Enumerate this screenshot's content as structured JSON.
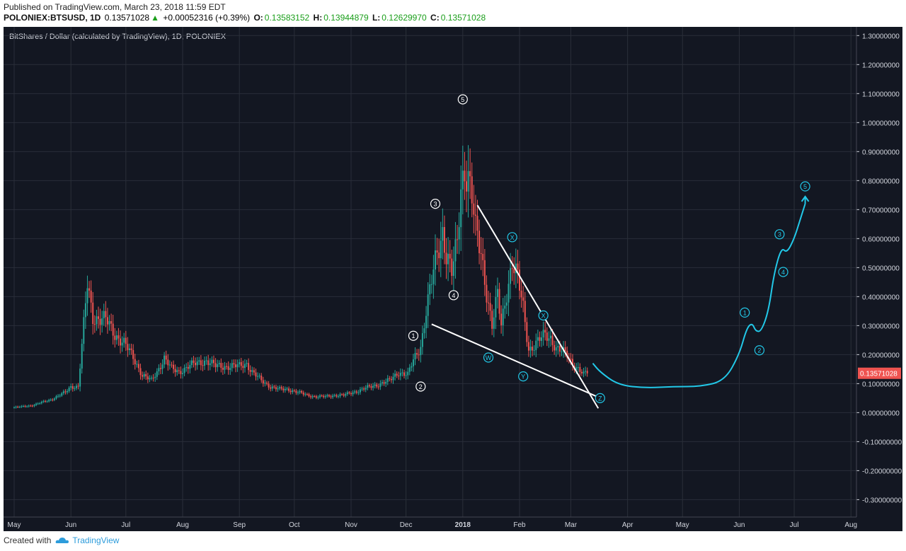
{
  "header": {
    "published": "Published on TradingView.com, March 23, 2018 11:59 EDT",
    "symbol": "POLONIEX:BTSUSD, 1D",
    "last": "0.13571028",
    "change": "+0.00052316 (+0.39%)",
    "open_label": "O:",
    "open": "0.13583152",
    "high_label": "H:",
    "high": "0.13944879",
    "low_label": "L:",
    "low": "0.12629970",
    "close_label": "C:",
    "close": "0.13571028"
  },
  "footer": {
    "created_with": "Created with",
    "brand": "TradingView"
  },
  "colors": {
    "background": "#131722",
    "grid": "#2a2e39",
    "up": "#26a69a",
    "down": "#ef5350",
    "trendline": "#ffffff",
    "projection": "#22c8e8",
    "price_tag": "#ef5350",
    "axis_text": "#d1d4dc"
  },
  "chart_data": {
    "type": "candlestick",
    "title": "BitShares / Dollar (calculated by TradingView), 1D, POLONIEX",
    "ylim": [
      -0.36,
      1.33
    ],
    "y_ticks": [
      "1.30000000",
      "1.20000000",
      "1.10000000",
      "1.00000000",
      "0.90000000",
      "0.80000000",
      "0.70000000",
      "0.60000000",
      "0.50000000",
      "0.40000000",
      "0.30000000",
      "0.20000000",
      "0.10000000",
      "0.00000000",
      "-0.10000000",
      "-0.20000000",
      "-0.30000000"
    ],
    "y_tick_values": [
      1.3,
      1.2,
      1.1,
      1.0,
      0.9,
      0.8,
      0.7,
      0.6,
      0.5,
      0.4,
      0.3,
      0.2,
      0.1,
      0.0,
      -0.1,
      -0.2,
      -0.3
    ],
    "x_ticks": [
      "May",
      "Jun",
      "Jul",
      "Aug",
      "Sep",
      "Oct",
      "Nov",
      "Dec",
      "2018",
      "Feb",
      "Mar",
      "Apr",
      "May",
      "Jun",
      "Jul",
      "Aug"
    ],
    "x_tick_days": [
      0,
      31,
      61,
      92,
      123,
      153,
      184,
      214,
      245,
      276,
      304,
      335,
      365,
      396,
      426,
      457
    ],
    "x_start": "2017-05-01",
    "last_price_label": "0.13571028",
    "last_price": 0.13571028,
    "price_anchors": [
      [
        0,
        0.018
      ],
      [
        10,
        0.025
      ],
      [
        20,
        0.045
      ],
      [
        28,
        0.07
      ],
      [
        31,
        0.09
      ],
      [
        35,
        0.09
      ],
      [
        38,
        0.3
      ],
      [
        40,
        0.44
      ],
      [
        43,
        0.33
      ],
      [
        50,
        0.32
      ],
      [
        55,
        0.27
      ],
      [
        60,
        0.24
      ],
      [
        65,
        0.19
      ],
      [
        70,
        0.13
      ],
      [
        75,
        0.11
      ],
      [
        78,
        0.14
      ],
      [
        82,
        0.19
      ],
      [
        86,
        0.15
      ],
      [
        90,
        0.14
      ],
      [
        95,
        0.16
      ],
      [
        100,
        0.17
      ],
      [
        105,
        0.18
      ],
      [
        110,
        0.16
      ],
      [
        115,
        0.16
      ],
      [
        120,
        0.16
      ],
      [
        123,
        0.16
      ],
      [
        127,
        0.17
      ],
      [
        130,
        0.14
      ],
      [
        135,
        0.11
      ],
      [
        140,
        0.09
      ],
      [
        145,
        0.08
      ],
      [
        150,
        0.08
      ],
      [
        155,
        0.07
      ],
      [
        160,
        0.06
      ],
      [
        165,
        0.055
      ],
      [
        170,
        0.055
      ],
      [
        175,
        0.06
      ],
      [
        180,
        0.06
      ],
      [
        185,
        0.07
      ],
      [
        190,
        0.08
      ],
      [
        195,
        0.09
      ],
      [
        200,
        0.1
      ],
      [
        205,
        0.11
      ],
      [
        210,
        0.14
      ],
      [
        215,
        0.13
      ],
      [
        218,
        0.18
      ],
      [
        222,
        0.23
      ],
      [
        225,
        0.35
      ],
      [
        228,
        0.45
      ],
      [
        231,
        0.55
      ],
      [
        234,
        0.63
      ],
      [
        236,
        0.55
      ],
      [
        239,
        0.48
      ],
      [
        242,
        0.58
      ],
      [
        244,
        0.78
      ],
      [
        246,
        0.85
      ],
      [
        248,
        0.82
      ],
      [
        250,
        0.74
      ],
      [
        252,
        0.62
      ],
      [
        255,
        0.55
      ],
      [
        258,
        0.42
      ],
      [
        261,
        0.3
      ],
      [
        264,
        0.4
      ],
      [
        266,
        0.3
      ],
      [
        269,
        0.42
      ],
      [
        272,
        0.52
      ],
      [
        275,
        0.46
      ],
      [
        278,
        0.36
      ],
      [
        281,
        0.22
      ],
      [
        284,
        0.23
      ],
      [
        287,
        0.25
      ],
      [
        290,
        0.27
      ],
      [
        293,
        0.26
      ],
      [
        296,
        0.22
      ],
      [
        299,
        0.21
      ],
      [
        302,
        0.2
      ],
      [
        305,
        0.17
      ],
      [
        308,
        0.15
      ],
      [
        311,
        0.13
      ],
      [
        313,
        0.14
      ]
    ],
    "trendlines": [
      {
        "from": [
          253,
          0.715
        ],
        "to": [
          319,
          0.015
        ]
      },
      {
        "from": [
          228,
          0.305
        ],
        "to": [
          322,
          0.045
        ]
      }
    ],
    "projection": [
      [
        316,
        0.17
      ],
      [
        320,
        0.14
      ],
      [
        330,
        0.095
      ],
      [
        345,
        0.085
      ],
      [
        360,
        0.09
      ],
      [
        375,
        0.09
      ],
      [
        388,
        0.11
      ],
      [
        396,
        0.2
      ],
      [
        400,
        0.29
      ],
      [
        403,
        0.31
      ],
      [
        405,
        0.28
      ],
      [
        408,
        0.28
      ],
      [
        412,
        0.35
      ],
      [
        415,
        0.48
      ],
      [
        419,
        0.57
      ],
      [
        422,
        0.55
      ],
      [
        426,
        0.6
      ],
      [
        429,
        0.66
      ],
      [
        432,
        0.72
      ]
    ],
    "projection_arrow": {
      "tip": [
        432,
        0.745
      ]
    },
    "wave_labels": [
      {
        "text": "5",
        "x": 245,
        "y": 1.08,
        "color": "white"
      },
      {
        "text": "3",
        "x": 230,
        "y": 0.72,
        "color": "white"
      },
      {
        "text": "4",
        "x": 240,
        "y": 0.405,
        "color": "white"
      },
      {
        "text": "1",
        "x": 218,
        "y": 0.265,
        "color": "white"
      },
      {
        "text": "2",
        "x": 222,
        "y": 0.09,
        "color": "white"
      },
      {
        "text": "X",
        "x": 272,
        "y": 0.605,
        "color": "cyan"
      },
      {
        "text": "W",
        "x": 259,
        "y": 0.19,
        "color": "cyan"
      },
      {
        "text": "X",
        "x": 289,
        "y": 0.335,
        "color": "cyan"
      },
      {
        "text": "Y",
        "x": 278,
        "y": 0.125,
        "color": "cyan"
      },
      {
        "text": "Z",
        "x": 320,
        "y": 0.05,
        "color": "cyan"
      },
      {
        "text": "1",
        "x": 399,
        "y": 0.345,
        "color": "cyan"
      },
      {
        "text": "2",
        "x": 407,
        "y": 0.215,
        "color": "cyan"
      },
      {
        "text": "3",
        "x": 418,
        "y": 0.615,
        "color": "cyan"
      },
      {
        "text": "4",
        "x": 420,
        "y": 0.485,
        "color": "cyan"
      },
      {
        "text": "5",
        "x": 432,
        "y": 0.78,
        "color": "cyan"
      }
    ]
  }
}
